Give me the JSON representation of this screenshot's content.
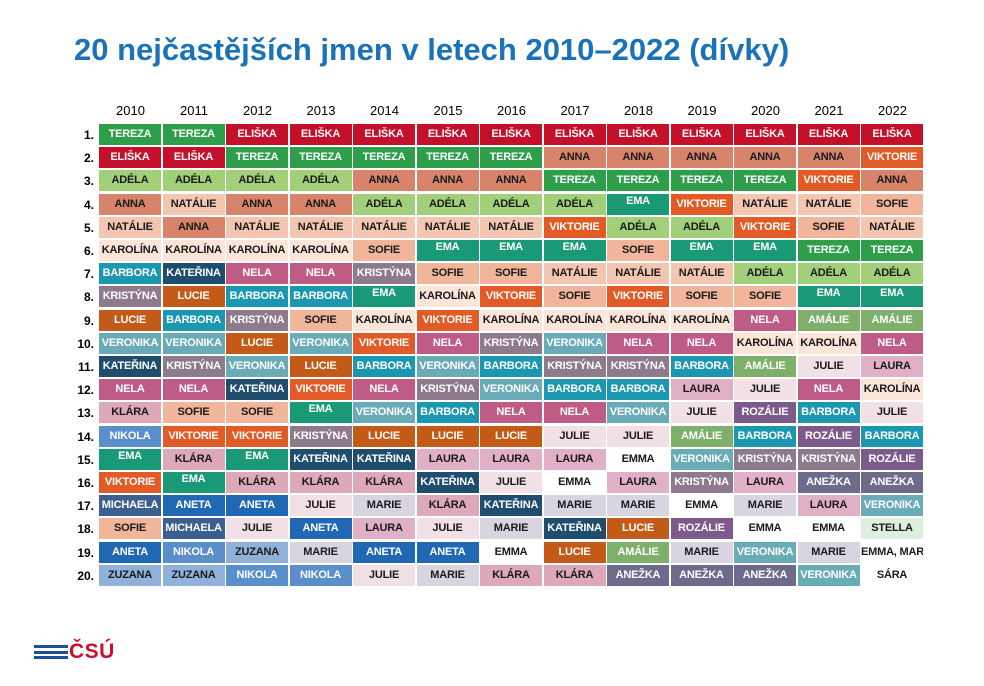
{
  "title": "20 nejčastějších jmen v letech 2010–2022 (dívky)",
  "logo": {
    "text": "ČSÚ"
  },
  "colors": {
    "TEREZA": "#2e9e4a",
    "ELIŠKA": "#c4102a",
    "ADÉLA": "#a2cf79",
    "ANNA": "#d8846b",
    "NATÁLIE": "#f3c6b2",
    "KAROLÍNA": "#fbe4d8",
    "BARBORA": "#1b98b0",
    "KRISTÝNA": "#8d7a8c",
    "LUCIE": "#c45a18",
    "VERONIKA": "#6aabb8",
    "KATEŘINA": "#1e4d6e",
    "NELA": "#bf5c86",
    "KLÁRA": "#dca8ba",
    "NIKOLA": "#5a8fcb",
    "EMA": "#1a9976",
    "VIKTORIE": "#e25a26",
    "MICHAELA": "#3b5f91",
    "SOFIE": "#f1b59c",
    "ANETA": "#2168b4",
    "ZUZANA": "#8fb1da",
    "JULIE": "#f1e0e5",
    "MARIE": "#d8d4e0",
    "LAURA": "#dfb0c6",
    "EMMA": "#ffffff",
    "AMÁLIE": "#7eb06c",
    "ANEŽKA": "#6e6a8c",
    "ROZÁLIE": "#7c5a8c",
    "STELLA": "#ddefdf",
    "EMMA, MARIE": "#ffffff",
    "SÁRA": "#ffffff"
  },
  "dark_text_names": [
    "ELIŠKA",
    "TEREZA",
    "BARBORA",
    "LUCIE",
    "VERONIKA",
    "KATEŘINA",
    "NELA",
    "NIKOLA",
    "EMA",
    "VIKTORIE",
    "MICHAELA",
    "ANETA",
    "ANEŽKA",
    "ROZÁLIE",
    "KRISTÝNA",
    "AMÁLIE"
  ],
  "chart_data": {
    "type": "table",
    "title": "20 nejčastějších jmen v letech 2010–2022 (dívky)",
    "years": [
      "2010",
      "2011",
      "2012",
      "2013",
      "2014",
      "2015",
      "2016",
      "2017",
      "2018",
      "2019",
      "2020",
      "2021",
      "2022"
    ],
    "ranks": [
      "1.",
      "2.",
      "3.",
      "4.",
      "5.",
      "6.",
      "7.",
      "8.",
      "9.",
      "10.",
      "11.",
      "12.",
      "13.",
      "14.",
      "15.",
      "16.",
      "17.",
      "18.",
      "19.",
      "20."
    ],
    "rows": [
      [
        "TEREZA",
        "TEREZA",
        "ELIŠKA",
        "ELIŠKA",
        "ELIŠKA",
        "ELIŠKA",
        "ELIŠKA",
        "ELIŠKA",
        "ELIŠKA",
        "ELIŠKA",
        "ELIŠKA",
        "ELIŠKA",
        "ELIŠKA"
      ],
      [
        "ELIŠKA",
        "ELIŠKA",
        "TEREZA",
        "TEREZA",
        "TEREZA",
        "TEREZA",
        "TEREZA",
        "ANNA",
        "ANNA",
        "ANNA",
        "ANNA",
        "ANNA",
        "VIKTORIE"
      ],
      [
        "ADÉLA",
        "ADÉLA",
        "ADÉLA",
        "ADÉLA",
        "ANNA",
        "ANNA",
        "ANNA",
        "TEREZA",
        "TEREZA",
        "TEREZA",
        "TEREZA",
        "VIKTORIE",
        "ANNA"
      ],
      [
        "ANNA",
        "NATÁLIE",
        "ANNA",
        "ANNA",
        "ADÉLA",
        "ADÉLA",
        "ADÉLA",
        "ADÉLA",
        "EMA",
        "VIKTORIE",
        "NATÁLIE",
        "NATÁLIE",
        "SOFIE"
      ],
      [
        "NATÁLIE",
        "ANNA",
        "NATÁLIE",
        "NATÁLIE",
        "NATÁLIE",
        "NATÁLIE",
        "NATÁLIE",
        "VIKTORIE",
        "ADÉLA",
        "ADÉLA",
        "VIKTORIE",
        "SOFIE",
        "NATÁLIE"
      ],
      [
        "KAROLÍNA",
        "KAROLÍNA",
        "KAROLÍNA",
        "KAROLÍNA",
        "SOFIE",
        "EMA",
        "EMA",
        "EMA",
        "SOFIE",
        "EMA",
        "EMA",
        "TEREZA",
        "TEREZA"
      ],
      [
        "BARBORA",
        "KATEŘINA",
        "NELA",
        "NELA",
        "KRISTÝNA",
        "SOFIE",
        "SOFIE",
        "NATÁLIE",
        "NATÁLIE",
        "NATÁLIE",
        "ADÉLA",
        "ADÉLA",
        "ADÉLA"
      ],
      [
        "KRISTÝNA",
        "LUCIE",
        "BARBORA",
        "BARBORA",
        "EMA",
        "KAROLÍNA",
        "VIKTORIE",
        "SOFIE",
        "VIKTORIE",
        "SOFIE",
        "SOFIE",
        "EMA",
        "EMA"
      ],
      [
        "LUCIE",
        "BARBORA",
        "KRISTÝNA",
        "SOFIE",
        "KAROLÍNA",
        "VIKTORIE",
        "KAROLÍNA",
        "KAROLÍNA",
        "KAROLÍNA",
        "KAROLÍNA",
        "NELA",
        "AMÁLIE",
        "AMÁLIE"
      ],
      [
        "VERONIKA",
        "VERONIKA",
        "LUCIE",
        "VERONIKA",
        "VIKTORIE",
        "NELA",
        "KRISTÝNA",
        "VERONIKA",
        "NELA",
        "NELA",
        "KAROLÍNA",
        "KAROLÍNA",
        "NELA"
      ],
      [
        "KATEŘINA",
        "KRISTÝNA",
        "VERONIKA",
        "LUCIE",
        "BARBORA",
        "VERONIKA",
        "BARBORA",
        "KRISTÝNA",
        "KRISTÝNA",
        "BARBORA",
        "AMÁLIE",
        "JULIE",
        "LAURA"
      ],
      [
        "NELA",
        "NELA",
        "KATEŘINA",
        "VIKTORIE",
        "NELA",
        "KRISTÝNA",
        "VERONIKA",
        "BARBORA",
        "BARBORA",
        "LAURA",
        "JULIE",
        "NELA",
        "KAROLÍNA"
      ],
      [
        "KLÁRA",
        "SOFIE",
        "SOFIE",
        "EMA",
        "VERONIKA",
        "BARBORA",
        "NELA",
        "NELA",
        "VERONIKA",
        "JULIE",
        "ROZÁLIE",
        "BARBORA",
        "JULIE"
      ],
      [
        "NIKOLA",
        "VIKTORIE",
        "VIKTORIE",
        "KRISTÝNA",
        "LUCIE",
        "LUCIE",
        "LUCIE",
        "JULIE",
        "JULIE",
        "AMÁLIE",
        "BARBORA",
        "ROZÁLIE",
        "BARBORA"
      ],
      [
        "EMA",
        "KLÁRA",
        "EMA",
        "KATEŘINA",
        "KATEŘINA",
        "LAURA",
        "LAURA",
        "LAURA",
        "EMMA",
        "VERONIKA",
        "KRISTÝNA",
        "KRISTÝNA",
        "ROZÁLIE"
      ],
      [
        "VIKTORIE",
        "EMA",
        "KLÁRA",
        "KLÁRA",
        "KLÁRA",
        "KATEŘINA",
        "JULIE",
        "EMMA",
        "LAURA",
        "KRISTÝNA",
        "LAURA",
        "ANEŽKA",
        "ANEŽKA"
      ],
      [
        "MICHAELA",
        "ANETA",
        "ANETA",
        "JULIE",
        "MARIE",
        "KLÁRA",
        "KATEŘINA",
        "MARIE",
        "MARIE",
        "EMMA",
        "MARIE",
        "LAURA",
        "VERONIKA"
      ],
      [
        "SOFIE",
        "MICHAELA",
        "JULIE",
        "ANETA",
        "LAURA",
        "JULIE",
        "MARIE",
        "KATEŘINA",
        "LUCIE",
        "ROZÁLIE",
        "EMMA",
        "EMMA",
        "STELLA"
      ],
      [
        "ANETA",
        "NIKOLA",
        "ZUZANA",
        "MARIE",
        "ANETA",
        "ANETA",
        "EMMA",
        "LUCIE",
        "AMÁLIE",
        "MARIE",
        "VERONIKA",
        "MARIE",
        "EMMA, MARIE"
      ],
      [
        "ZUZANA",
        "ZUZANA",
        "NIKOLA",
        "NIKOLA",
        "JULIE",
        "MARIE",
        "KLÁRA",
        "KLÁRA",
        "ANEŽKA",
        "ANEŽKA",
        "ANEŽKA",
        "VERONIKA",
        "SÁRA"
      ]
    ]
  }
}
